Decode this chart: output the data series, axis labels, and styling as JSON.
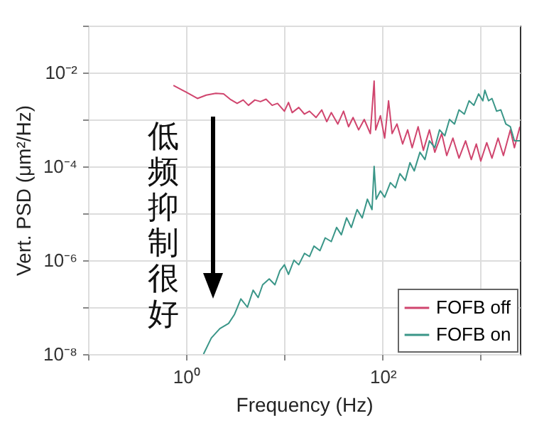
{
  "chart_data": {
    "type": "line",
    "xlabel": "Frequency (Hz)",
    "ylabel": "Vert. PSD (μm²/Hz)",
    "log": "xy",
    "grid": true,
    "legend": "bottom right",
    "line_style": "solid",
    "marker": "none",
    "xlim": [
      0.1,
      2500
    ],
    "ylim": [
      1e-08,
      0.1
    ],
    "xticks": [
      {
        "value": 0.1,
        "label": null
      },
      {
        "value": 1,
        "label": "10⁰"
      },
      {
        "value": 10,
        "label": null
      },
      {
        "value": 100,
        "label": "10²"
      },
      {
        "value": 1000,
        "label": null
      }
    ],
    "yticks": [
      {
        "value": 1e-08,
        "label": "10⁻⁸"
      },
      {
        "value": 1e-07,
        "label": null
      },
      {
        "value": 1e-06,
        "label": "10⁻⁶"
      },
      {
        "value": 1e-05,
        "label": null
      },
      {
        "value": 0.0001,
        "label": "10⁻⁴"
      },
      {
        "value": 0.001,
        "label": null
      },
      {
        "value": 0.01,
        "label": "10⁻²"
      },
      {
        "value": 0.1,
        "label": null
      }
    ],
    "annotations": [
      "低频抑制很好"
    ],
    "series": [
      {
        "name": "FOFB off",
        "color": "#d0456e",
        "x": [
          0.74,
          1.0,
          1.3,
          1.6,
          2.0,
          2.4,
          2.8,
          3.3,
          3.8,
          4.3,
          5.0,
          5.7,
          6.5,
          7.5,
          8.5,
          10,
          11,
          12,
          14,
          16,
          18,
          21,
          24,
          27,
          30,
          35,
          40,
          45,
          50,
          57,
          65,
          75,
          82,
          85,
          95,
          105,
          115,
          125,
          140,
          160,
          180,
          200,
          230,
          260,
          300,
          340,
          400,
          450,
          520,
          600,
          700,
          800,
          900,
          1000,
          1150,
          1300,
          1500,
          1700,
          2000,
          2200,
          2500
        ],
        "values": [
          0.0053,
          0.0038,
          0.0028,
          0.0033,
          0.0036,
          0.0035,
          0.0027,
          0.0022,
          0.0026,
          0.002,
          0.0026,
          0.0024,
          0.0027,
          0.002,
          0.0022,
          0.0015,
          0.0023,
          0.0014,
          0.0018,
          0.0013,
          0.0015,
          0.0011,
          0.0016,
          0.0009,
          0.0014,
          0.0008,
          0.0015,
          0.0007,
          0.0011,
          0.0006,
          0.001,
          0.0005,
          0.0066,
          0.0006,
          0.0012,
          0.0004,
          0.0025,
          0.0005,
          0.0008,
          0.0003,
          0.0006,
          0.00025,
          0.0007,
          0.00022,
          0.0006,
          0.0002,
          0.0005,
          0.00017,
          0.0004,
          0.00015,
          0.00035,
          0.00014,
          0.0003,
          0.00013,
          0.00032,
          0.00015,
          0.0004,
          0.00017,
          0.0006,
          0.00025,
          0.0007
        ]
      },
      {
        "name": "FOFB on",
        "color": "#3a9688",
        "x": [
          1.5,
          1.8,
          2.2,
          2.7,
          3.1,
          3.6,
          4.2,
          4.8,
          5.4,
          6.0,
          7.0,
          8.0,
          9,
          10,
          11,
          12.5,
          14,
          16,
          18,
          20,
          23,
          26,
          30,
          34,
          38,
          43,
          48,
          55,
          62,
          70,
          78,
          82,
          86,
          95,
          105,
          120,
          135,
          150,
          170,
          190,
          210,
          240,
          270,
          300,
          340,
          380,
          430,
          480,
          540,
          600,
          680,
          760,
          850,
          950,
          1050,
          1100,
          1200,
          1300,
          1450,
          1600,
          1800,
          2000,
          2200,
          2500
        ],
        "values": [
          1e-08,
          2.2e-08,
          3.5e-08,
          4.5e-08,
          7e-08,
          1.5e-07,
          1e-07,
          2.3e-07,
          1.6e-07,
          3e-07,
          4e-07,
          3e-07,
          6e-07,
          8e-07,
          5e-07,
          1e-06,
          8e-07,
          1.4e-06,
          1.2e-06,
          2e-06,
          1.6e-06,
          3e-06,
          2.5e-06,
          5e-06,
          3.5e-06,
          8e-06,
          5e-06,
          1.2e-05,
          8e-06,
          2e-05,
          1.2e-05,
          0.0001,
          2e-05,
          3e-05,
          2.2e-05,
          4.5e-05,
          3.5e-05,
          7e-05,
          5e-05,
          0.00012,
          8e-05,
          0.0002,
          0.00014,
          0.00035,
          0.00025,
          0.0006,
          0.00045,
          0.001,
          0.0008,
          0.0016,
          0.0013,
          0.0025,
          0.002,
          0.0035,
          0.0025,
          0.0042,
          0.0025,
          0.0028,
          0.0015,
          0.0016,
          0.0008,
          0.0007,
          0.00035,
          0.00035
        ]
      }
    ]
  }
}
